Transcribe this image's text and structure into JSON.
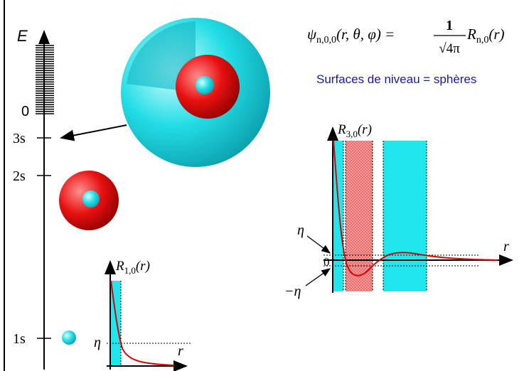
{
  "energy_axis": {
    "label": "E",
    "zero": "0",
    "levels": [
      "3s",
      "2s",
      "1s"
    ]
  },
  "formula": {
    "psi": "ψ",
    "psi_sub": "n,0,0",
    "args": "(r, θ, φ) =",
    "numerator": "1",
    "denominator": "√4π",
    "radial": "R",
    "radial_sub": "n,0",
    "radial_args": "(r)"
  },
  "subtitle": "Surfaces de niveau = sphères",
  "plot_3s": {
    "ylabel": "R",
    "ylabel_sub": "3,0",
    "ylabel_args": "(r)",
    "xlabel": "r",
    "eta": "η",
    "minus_eta": "−η",
    "zero": "0"
  },
  "plot_1s": {
    "ylabel": "R",
    "ylabel_sub": "1,0",
    "ylabel_args": "(r)",
    "xlabel": "r",
    "eta": "η"
  }
}
